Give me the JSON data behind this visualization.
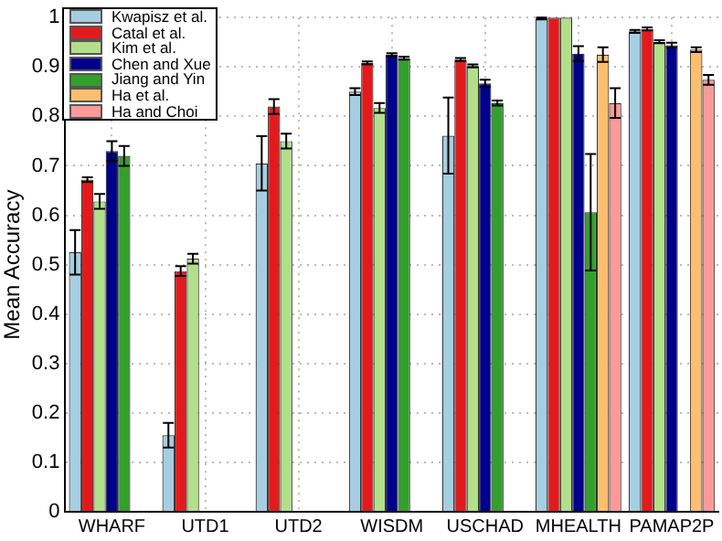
{
  "chart_data": {
    "type": "bar",
    "ylabel": "Mean Accuracy",
    "categories": [
      "WHARF",
      "UTD1",
      "UTD2",
      "WISDM",
      "USCHAD",
      "MHEALTH",
      "PAMAP2P"
    ],
    "series": [
      {
        "name": "Kwapisz et al.",
        "color": "#a6cee3",
        "values": [
          0.525,
          0.155,
          0.705,
          0.85,
          0.761,
          0.998,
          0.972
        ],
        "errors": [
          0.045,
          0.025,
          0.055,
          0.007,
          0.077,
          0.002,
          0.003
        ]
      },
      {
        "name": "Catal et al.",
        "color": "#e31a1c",
        "values": [
          0.672,
          0.487,
          0.82,
          0.908,
          0.915,
          1.0,
          0.977
        ],
        "errors": [
          0.005,
          0.01,
          0.015,
          0.003,
          0.003,
          null,
          0.003
        ]
      },
      {
        "name": "Kim et al.",
        "color": "#b2df8a",
        "values": [
          0.628,
          0.512,
          0.75,
          0.817,
          0.902,
          1.0,
          0.951
        ],
        "errors": [
          0.015,
          0.01,
          0.015,
          0.01,
          0.003,
          null,
          0.003
        ]
      },
      {
        "name": "Chen and Xue",
        "color": "#00008b",
        "values": [
          0.73,
          null,
          null,
          0.925,
          0.867,
          0.927,
          0.944
        ],
        "errors": [
          0.02,
          null,
          null,
          0.003,
          0.007,
          0.015,
          0.005
        ]
      },
      {
        "name": "Jiang and Yin",
        "color": "#33a02c",
        "values": [
          0.72,
          null,
          null,
          0.918,
          0.827,
          0.606,
          null
        ],
        "errors": [
          0.02,
          null,
          null,
          0.003,
          0.005,
          0.118,
          null
        ]
      },
      {
        "name": "Ha et al.",
        "color": "#fdbf6f",
        "values": [
          null,
          null,
          null,
          null,
          null,
          0.925,
          0.935
        ],
        "errors": [
          null,
          null,
          null,
          null,
          null,
          0.015,
          0.005
        ]
      },
      {
        "name": "Ha and Choi",
        "color": "#fb9a99",
        "values": [
          null,
          null,
          null,
          null,
          null,
          0.827,
          0.874
        ],
        "errors": [
          null,
          null,
          null,
          null,
          null,
          0.03,
          0.01
        ]
      }
    ],
    "ylim": [
      0,
      1
    ],
    "yticks": [
      0,
      0.1,
      0.2,
      0.3,
      0.4,
      0.5,
      0.6,
      0.7,
      0.8,
      0.9,
      1
    ],
    "grid": true,
    "legend": "top left"
  }
}
